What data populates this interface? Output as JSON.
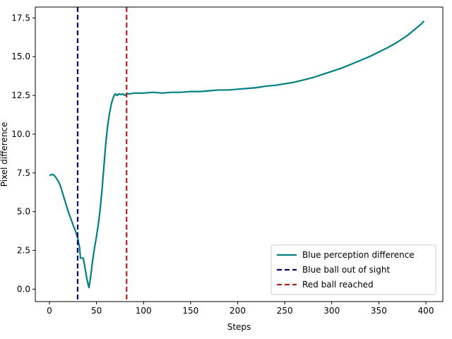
{
  "chart_data": {
    "type": "line",
    "title": "",
    "xlabel": "Steps",
    "ylabel": "Pixel difference",
    "xlim": [
      -15,
      418
    ],
    "ylim": [
      -0.8,
      18.2
    ],
    "xticks": [
      0,
      50,
      100,
      150,
      200,
      250,
      300,
      350,
      400
    ],
    "xtick_labels": [
      "0",
      "50",
      "100",
      "150",
      "200",
      "250",
      "300",
      "350",
      "400"
    ],
    "yticks": [
      0.0,
      2.5,
      5.0,
      7.5,
      10.0,
      12.5,
      15.0,
      17.5
    ],
    "ytick_labels": [
      "0.0",
      "2.5",
      "5.0",
      "7.5",
      "10.0",
      "12.5",
      "15.0",
      "17.5"
    ],
    "grid": false,
    "legend_position": "lower-right",
    "series": [
      {
        "name": "Blue perception difference",
        "color": "#008080",
        "style": "solid",
        "points": [
          [
            0,
            7.35
          ],
          [
            3,
            7.4
          ],
          [
            5,
            7.35
          ],
          [
            8,
            7.1
          ],
          [
            10,
            6.9
          ],
          [
            12,
            6.6
          ],
          [
            15,
            6.0
          ],
          [
            18,
            5.4
          ],
          [
            20,
            5.0
          ],
          [
            23,
            4.5
          ],
          [
            26,
            4.0
          ],
          [
            28,
            3.7
          ],
          [
            30,
            3.3
          ],
          [
            32,
            2.7
          ],
          [
            33,
            2.0
          ],
          [
            36,
            2.0
          ],
          [
            38,
            1.3
          ],
          [
            40,
            0.6
          ],
          [
            42,
            0.1
          ],
          [
            44,
            0.9
          ],
          [
            46,
            1.9
          ],
          [
            48,
            2.7
          ],
          [
            50,
            3.4
          ],
          [
            52,
            4.2
          ],
          [
            54,
            5.2
          ],
          [
            56,
            6.5
          ],
          [
            58,
            8.0
          ],
          [
            60,
            9.5
          ],
          [
            62,
            10.6
          ],
          [
            64,
            11.4
          ],
          [
            66,
            12.0
          ],
          [
            68,
            12.4
          ],
          [
            70,
            12.6
          ],
          [
            72,
            12.5
          ],
          [
            74,
            12.6
          ],
          [
            76,
            12.55
          ],
          [
            78,
            12.6
          ],
          [
            80,
            12.5
          ],
          [
            82,
            12.6
          ],
          [
            85,
            12.6
          ],
          [
            90,
            12.65
          ],
          [
            100,
            12.65
          ],
          [
            110,
            12.7
          ],
          [
            120,
            12.65
          ],
          [
            130,
            12.7
          ],
          [
            140,
            12.7
          ],
          [
            150,
            12.75
          ],
          [
            160,
            12.75
          ],
          [
            170,
            12.8
          ],
          [
            180,
            12.85
          ],
          [
            190,
            12.85
          ],
          [
            200,
            12.9
          ],
          [
            210,
            12.95
          ],
          [
            220,
            13.0
          ],
          [
            230,
            13.1
          ],
          [
            240,
            13.15
          ],
          [
            250,
            13.25
          ],
          [
            260,
            13.35
          ],
          [
            270,
            13.5
          ],
          [
            280,
            13.65
          ],
          [
            290,
            13.85
          ],
          [
            300,
            14.05
          ],
          [
            310,
            14.25
          ],
          [
            320,
            14.5
          ],
          [
            330,
            14.75
          ],
          [
            340,
            15.0
          ],
          [
            350,
            15.3
          ],
          [
            360,
            15.6
          ],
          [
            370,
            15.95
          ],
          [
            380,
            16.35
          ],
          [
            390,
            16.85
          ],
          [
            395,
            17.1
          ],
          [
            398,
            17.3
          ]
        ]
      },
      {
        "name": "Blue ball out of sight",
        "color": "#000080",
        "style": "dashed-vertical",
        "x": 30
      },
      {
        "name": "Red ball reached",
        "color": "#b22222",
        "style": "dashed-vertical",
        "x": 82
      }
    ]
  }
}
